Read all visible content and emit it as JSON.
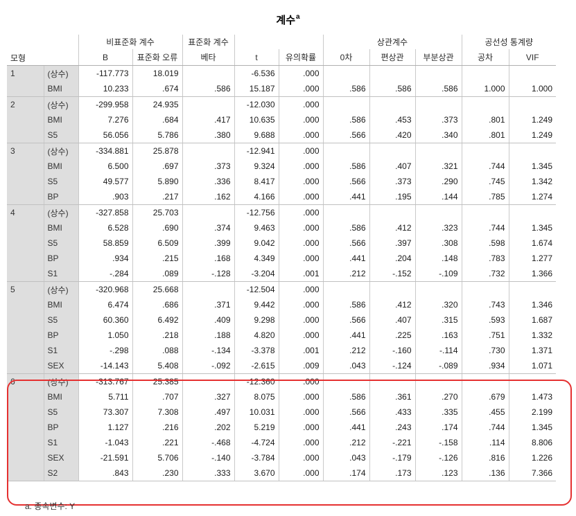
{
  "title": "계수",
  "title_superscript": "a",
  "footnote": "a. 종속변수: Y",
  "headers": {
    "model": "모형",
    "unstd_group": "비표준화 계수",
    "std_group": "표준화 계수",
    "corr_group": "상관계수",
    "colin_group": "공선성 통계량",
    "B": "B",
    "se": "표준화 오류",
    "beta": "베타",
    "t": "t",
    "sig": "유의확률",
    "zero_order": "0차",
    "partial": "편상관",
    "part": "부분상관",
    "tolerance": "공차",
    "vif": "VIF"
  },
  "models": [
    {
      "label": "1",
      "rows": [
        [
          "(상수)",
          "-117.773",
          "18.019",
          "",
          "-6.536",
          ".000",
          "",
          "",
          "",
          "",
          ""
        ],
        [
          "BMI",
          "10.233",
          ".674",
          ".586",
          "15.187",
          ".000",
          ".586",
          ".586",
          ".586",
          "1.000",
          "1.000"
        ]
      ]
    },
    {
      "label": "2",
      "rows": [
        [
          "(상수)",
          "-299.958",
          "24.935",
          "",
          "-12.030",
          ".000",
          "",
          "",
          "",
          "",
          ""
        ],
        [
          "BMI",
          "7.276",
          ".684",
          ".417",
          "10.635",
          ".000",
          ".586",
          ".453",
          ".373",
          ".801",
          "1.249"
        ],
        [
          "S5",
          "56.056",
          "5.786",
          ".380",
          "9.688",
          ".000",
          ".566",
          ".420",
          ".340",
          ".801",
          "1.249"
        ]
      ]
    },
    {
      "label": "3",
      "rows": [
        [
          "(상수)",
          "-334.881",
          "25.878",
          "",
          "-12.941",
          ".000",
          "",
          "",
          "",
          "",
          ""
        ],
        [
          "BMI",
          "6.500",
          ".697",
          ".373",
          "9.324",
          ".000",
          ".586",
          ".407",
          ".321",
          ".744",
          "1.345"
        ],
        [
          "S5",
          "49.577",
          "5.890",
          ".336",
          "8.417",
          ".000",
          ".566",
          ".373",
          ".290",
          ".745",
          "1.342"
        ],
        [
          "BP",
          ".903",
          ".217",
          ".162",
          "4.166",
          ".000",
          ".441",
          ".195",
          ".144",
          ".785",
          "1.274"
        ]
      ]
    },
    {
      "label": "4",
      "rows": [
        [
          "(상수)",
          "-327.858",
          "25.703",
          "",
          "-12.756",
          ".000",
          "",
          "",
          "",
          "",
          ""
        ],
        [
          "BMI",
          "6.528",
          ".690",
          ".374",
          "9.463",
          ".000",
          ".586",
          ".412",
          ".323",
          ".744",
          "1.345"
        ],
        [
          "S5",
          "58.859",
          "6.509",
          ".399",
          "9.042",
          ".000",
          ".566",
          ".397",
          ".308",
          ".598",
          "1.674"
        ],
        [
          "BP",
          ".934",
          ".215",
          ".168",
          "4.349",
          ".000",
          ".441",
          ".204",
          ".148",
          ".783",
          "1.277"
        ],
        [
          "S1",
          "-.284",
          ".089",
          "-.128",
          "-3.204",
          ".001",
          ".212",
          "-.152",
          "-.109",
          ".732",
          "1.366"
        ]
      ]
    },
    {
      "label": "5",
      "rows": [
        [
          "(상수)",
          "-320.968",
          "25.668",
          "",
          "-12.504",
          ".000",
          "",
          "",
          "",
          "",
          ""
        ],
        [
          "BMI",
          "6.474",
          ".686",
          ".371",
          "9.442",
          ".000",
          ".586",
          ".412",
          ".320",
          ".743",
          "1.346"
        ],
        [
          "S5",
          "60.360",
          "6.492",
          ".409",
          "9.298",
          ".000",
          ".566",
          ".407",
          ".315",
          ".593",
          "1.687"
        ],
        [
          "BP",
          "1.050",
          ".218",
          ".188",
          "4.820",
          ".000",
          ".441",
          ".225",
          ".163",
          ".751",
          "1.332"
        ],
        [
          "S1",
          "-.298",
          ".088",
          "-.134",
          "-3.378",
          ".001",
          ".212",
          "-.160",
          "-.114",
          ".730",
          "1.371"
        ],
        [
          "SEX",
          "-14.143",
          "5.408",
          "-.092",
          "-2.615",
          ".009",
          ".043",
          "-.124",
          "-.089",
          ".934",
          "1.071"
        ]
      ]
    },
    {
      "label": "6",
      "rows": [
        [
          "(상수)",
          "-313.767",
          "25.385",
          "",
          "-12.360",
          ".000",
          "",
          "",
          "",
          "",
          ""
        ],
        [
          "BMI",
          "5.711",
          ".707",
          ".327",
          "8.075",
          ".000",
          ".586",
          ".361",
          ".270",
          ".679",
          "1.473"
        ],
        [
          "S5",
          "73.307",
          "7.308",
          ".497",
          "10.031",
          ".000",
          ".566",
          ".433",
          ".335",
          ".455",
          "2.199"
        ],
        [
          "BP",
          "1.127",
          ".216",
          ".202",
          "5.219",
          ".000",
          ".441",
          ".243",
          ".174",
          ".744",
          "1.345"
        ],
        [
          "S1",
          "-1.043",
          ".221",
          "-.468",
          "-4.724",
          ".000",
          ".212",
          "-.221",
          "-.158",
          ".114",
          "8.806"
        ],
        [
          "SEX",
          "-21.591",
          "5.706",
          "-.140",
          "-3.784",
          ".000",
          ".043",
          "-.179",
          "-.126",
          ".816",
          "1.226"
        ],
        [
          "S2",
          ".843",
          ".230",
          ".333",
          "3.670",
          ".000",
          ".174",
          ".173",
          ".123",
          ".136",
          "7.366"
        ]
      ]
    }
  ],
  "colors": {
    "label_bg": "#dedede",
    "highlight": "#e53030"
  }
}
